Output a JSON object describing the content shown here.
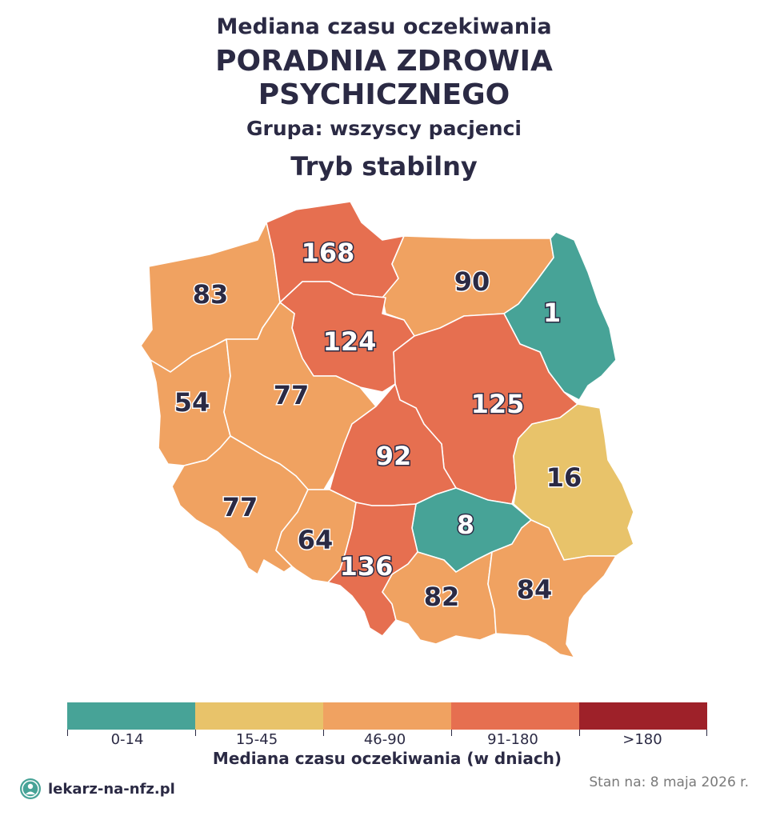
{
  "title": {
    "line1": "Mediana czasu oczekiwania",
    "line2a": "PORADNIA ZDROWIA",
    "line2b": "PSYCHICZNEGO",
    "group": "Grupa: wszyscy pacjenci",
    "mode": "Tryb stabilny"
  },
  "colors": {
    "0-14": "#47a397",
    "15-45": "#e8c36a",
    "46-90": "#f0a261",
    "91-180": "#e66f50",
    ">180": "#9e2129"
  },
  "regions": [
    {
      "name": "pomorskie",
      "value": 168,
      "band": "91-180"
    },
    {
      "name": "warminsko-mazurskie",
      "value": 90,
      "band": "46-90"
    },
    {
      "name": "podlaskie",
      "value": 1,
      "band": "0-14"
    },
    {
      "name": "zachodniopomorskie",
      "value": 83,
      "band": "46-90"
    },
    {
      "name": "kujawsko-pomorskie",
      "value": 124,
      "band": "91-180"
    },
    {
      "name": "lubuskie",
      "value": 54,
      "band": "46-90"
    },
    {
      "name": "wielkopolskie",
      "value": 77,
      "band": "46-90"
    },
    {
      "name": "mazowieckie",
      "value": 125,
      "band": "91-180"
    },
    {
      "name": "lodzkie",
      "value": 92,
      "band": "91-180"
    },
    {
      "name": "lubelskie",
      "value": 16,
      "band": "15-45"
    },
    {
      "name": "dolnoslaskie",
      "value": 77,
      "band": "46-90"
    },
    {
      "name": "opolskie",
      "value": 64,
      "band": "46-90"
    },
    {
      "name": "swietokrzyskie",
      "value": 8,
      "band": "0-14"
    },
    {
      "name": "slaskie",
      "value": 136,
      "band": "91-180"
    },
    {
      "name": "malopolskie",
      "value": 82,
      "band": "46-90"
    },
    {
      "name": "podkarpackie",
      "value": 84,
      "band": "46-90"
    }
  ],
  "legend": {
    "bands": [
      "0-14",
      "15-45",
      "46-90",
      "91-180",
      ">180"
    ],
    "title": "Mediana czasu oczekiwania (w dniach)"
  },
  "footer": {
    "brand": "lekarz-na-nfz.pl",
    "stamp": "Stan na: 8 maja 2026 r."
  }
}
